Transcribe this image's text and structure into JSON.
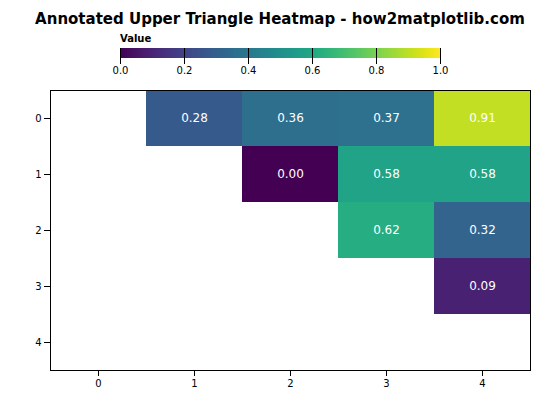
{
  "chart_data": {
    "type": "heatmap",
    "title": "Annotated Upper Triangle Heatmap - how2matplotlib.com",
    "categories": [
      "0",
      "1",
      "2",
      "3",
      "4"
    ],
    "values": [
      [
        null,
        0.28,
        0.36,
        0.37,
        0.91
      ],
      [
        null,
        null,
        0.0,
        0.58,
        0.58
      ],
      [
        null,
        null,
        null,
        0.62,
        0.32
      ],
      [
        null,
        null,
        null,
        null,
        0.09
      ],
      [
        null,
        null,
        null,
        null,
        null
      ]
    ],
    "value_labels": [
      [
        null,
        "0.28",
        "0.36",
        "0.37",
        "0.91"
      ],
      [
        null,
        null,
        "0.00",
        "0.58",
        "0.58"
      ],
      [
        null,
        null,
        null,
        "0.62",
        "0.32"
      ],
      [
        null,
        null,
        null,
        null,
        "0.09"
      ],
      [
        null,
        null,
        null,
        null,
        null
      ]
    ],
    "data_labels": true,
    "color": "viridis",
    "colorbar_label": "Value",
    "colorbar_range": [
      0.0,
      1.0
    ],
    "colorbar_ticks": [
      {
        "value": 0.0,
        "label": "0.0"
      },
      {
        "value": 0.2,
        "label": "0.2"
      },
      {
        "value": 0.4,
        "label": "0.4"
      },
      {
        "value": 0.6,
        "label": "0.6"
      },
      {
        "value": 0.8,
        "label": "0.8"
      },
      {
        "value": 1.0,
        "label": "1.0"
      }
    ]
  }
}
